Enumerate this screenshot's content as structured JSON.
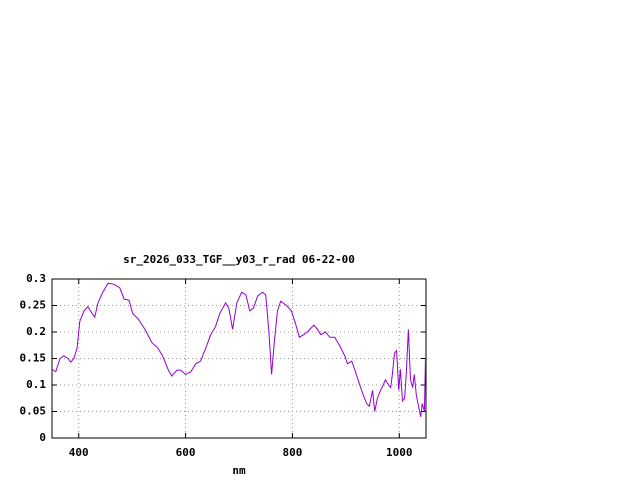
{
  "chart_data": {
    "type": "line",
    "title": "sr_2026_033_TGF__y03_r_rad 06-22-00",
    "x_label": "nm",
    "x": [
      350,
      357,
      365,
      372,
      380,
      385,
      391,
      397,
      402,
      410,
      417,
      425,
      430,
      436,
      445,
      455,
      466,
      477,
      485,
      494,
      501,
      511,
      524,
      537,
      548,
      557,
      567,
      574,
      584,
      591,
      600,
      610,
      619,
      628,
      638,
      647,
      656,
      664,
      675,
      681,
      688,
      696,
      705,
      713,
      720,
      727,
      735,
      744,
      750,
      756,
      761,
      766,
      772,
      778,
      789,
      798,
      806,
      813,
      821,
      828,
      840,
      847,
      853,
      862,
      870,
      879,
      888,
      898,
      903,
      911,
      918,
      926,
      933,
      939,
      944,
      950,
      954,
      959,
      965,
      970,
      974,
      980,
      984,
      987,
      991,
      995,
      999,
      1002,
      1006,
      1010,
      1013,
      1017,
      1021,
      1025,
      1028,
      1032,
      1036,
      1040,
      1043,
      1047,
      1049
    ],
    "series": [
      {
        "color": "#9400d3",
        "values": [
          0.13,
          0.125,
          0.15,
          0.155,
          0.15,
          0.143,
          0.15,
          0.17,
          0.22,
          0.24,
          0.248,
          0.235,
          0.228,
          0.255,
          0.275,
          0.292,
          0.29,
          0.283,
          0.262,
          0.26,
          0.235,
          0.225,
          0.205,
          0.18,
          0.17,
          0.155,
          0.13,
          0.117,
          0.128,
          0.128,
          0.12,
          0.125,
          0.14,
          0.145,
          0.17,
          0.195,
          0.21,
          0.235,
          0.255,
          0.245,
          0.205,
          0.255,
          0.275,
          0.27,
          0.24,
          0.245,
          0.268,
          0.275,
          0.27,
          0.2,
          0.12,
          0.18,
          0.24,
          0.258,
          0.25,
          0.24,
          0.215,
          0.19,
          0.195,
          0.2,
          0.213,
          0.205,
          0.195,
          0.2,
          0.19,
          0.19,
          0.175,
          0.155,
          0.14,
          0.145,
          0.125,
          0.1,
          0.08,
          0.065,
          0.06,
          0.09,
          0.05,
          0.075,
          0.09,
          0.1,
          0.11,
          0.1,
          0.095,
          0.12,
          0.16,
          0.165,
          0.09,
          0.13,
          0.07,
          0.075,
          0.12,
          0.205,
          0.11,
          0.095,
          0.12,
          0.08,
          0.06,
          0.04,
          0.065,
          0.05,
          0.15
        ]
      }
    ],
    "xlim": [
      350,
      1050
    ],
    "xticks": [
      400,
      600,
      800,
      1000
    ],
    "ylim": [
      0,
      0.3
    ],
    "yticks": [
      0,
      0.05,
      0.1,
      0.15,
      0.2,
      0.25,
      0.3
    ],
    "grid": true
  }
}
